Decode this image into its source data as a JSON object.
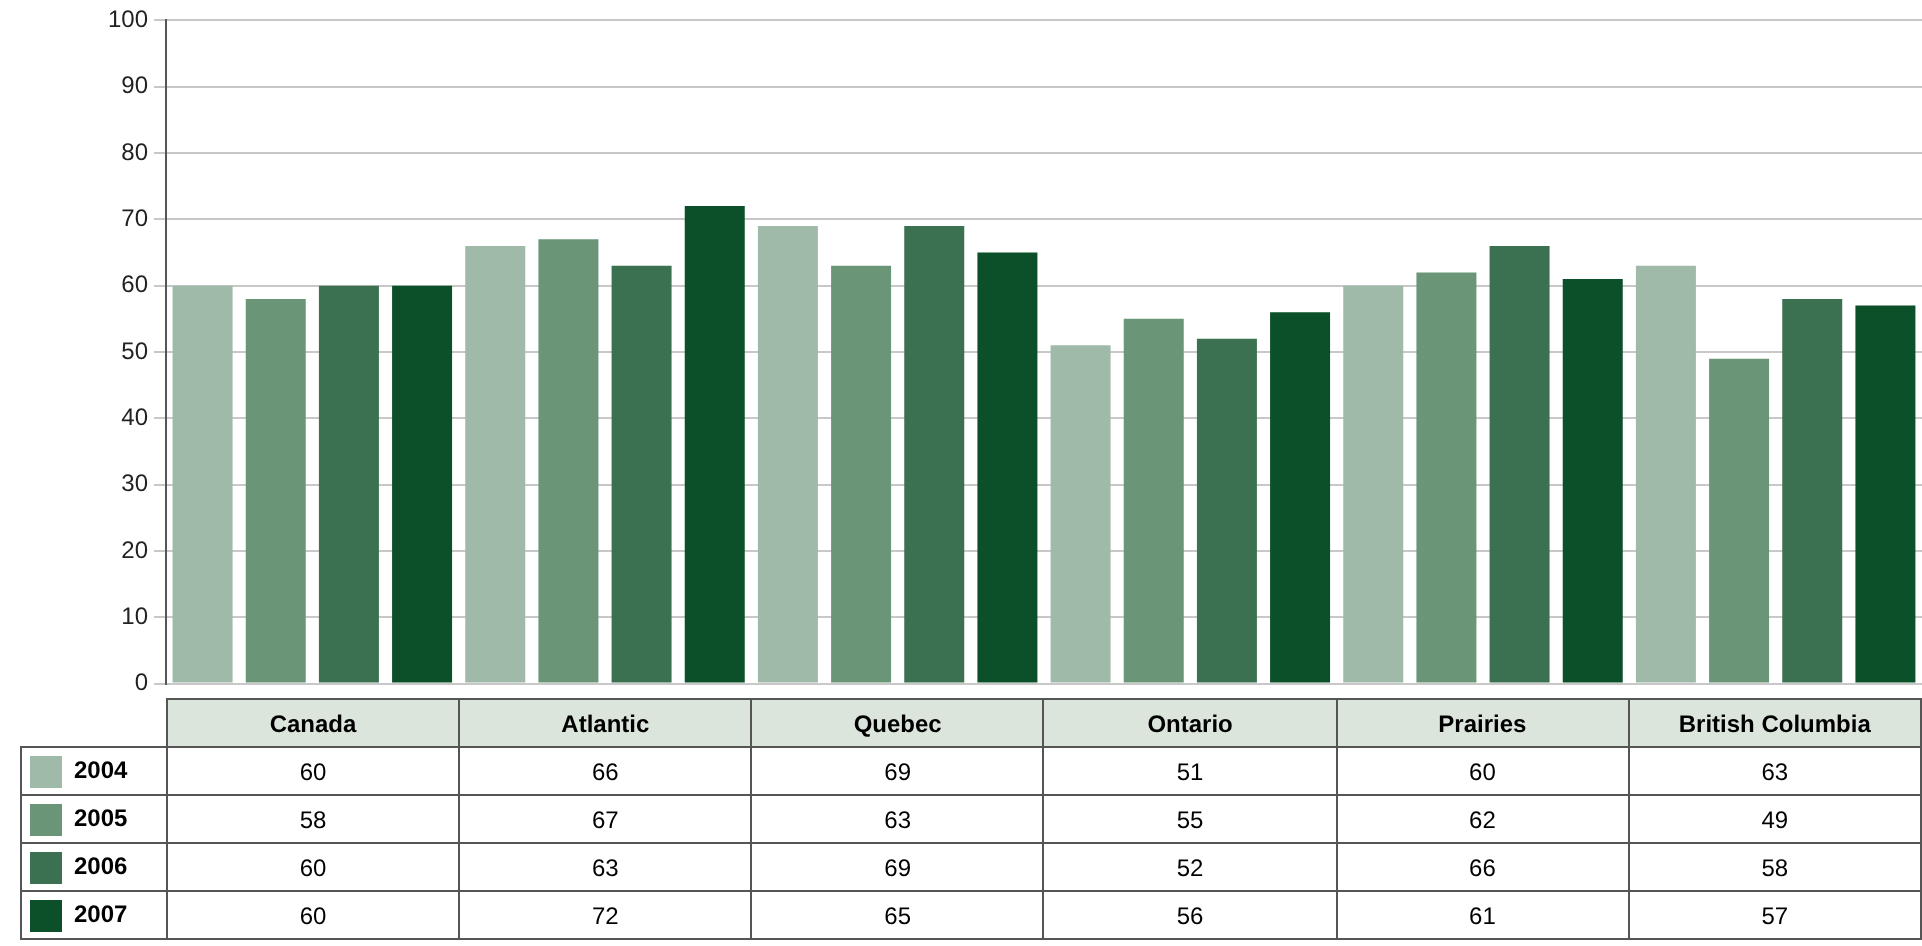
{
  "chart_data": {
    "type": "bar",
    "categories": [
      "Canada",
      "Atlantic",
      "Quebec",
      "Ontario",
      "Prairies",
      "British Columbia"
    ],
    "series": [
      {
        "name": "2004",
        "color": "#9fbaa8",
        "values": [
          60,
          66,
          69,
          51,
          60,
          63
        ]
      },
      {
        "name": "2005",
        "color": "#6a9677",
        "values": [
          58,
          67,
          63,
          55,
          62,
          49
        ]
      },
      {
        "name": "2006",
        "color": "#3b7150",
        "values": [
          60,
          63,
          69,
          52,
          66,
          58
        ]
      },
      {
        "name": "2007",
        "color": "#0b5028",
        "values": [
          60,
          72,
          65,
          56,
          61,
          57
        ]
      }
    ],
    "ylim": [
      0,
      100
    ],
    "yticks": [
      0,
      10,
      20,
      30,
      40,
      50,
      60,
      70,
      80,
      90,
      100
    ],
    "grid": "y",
    "data_labels": true,
    "legend": "bottom left"
  }
}
